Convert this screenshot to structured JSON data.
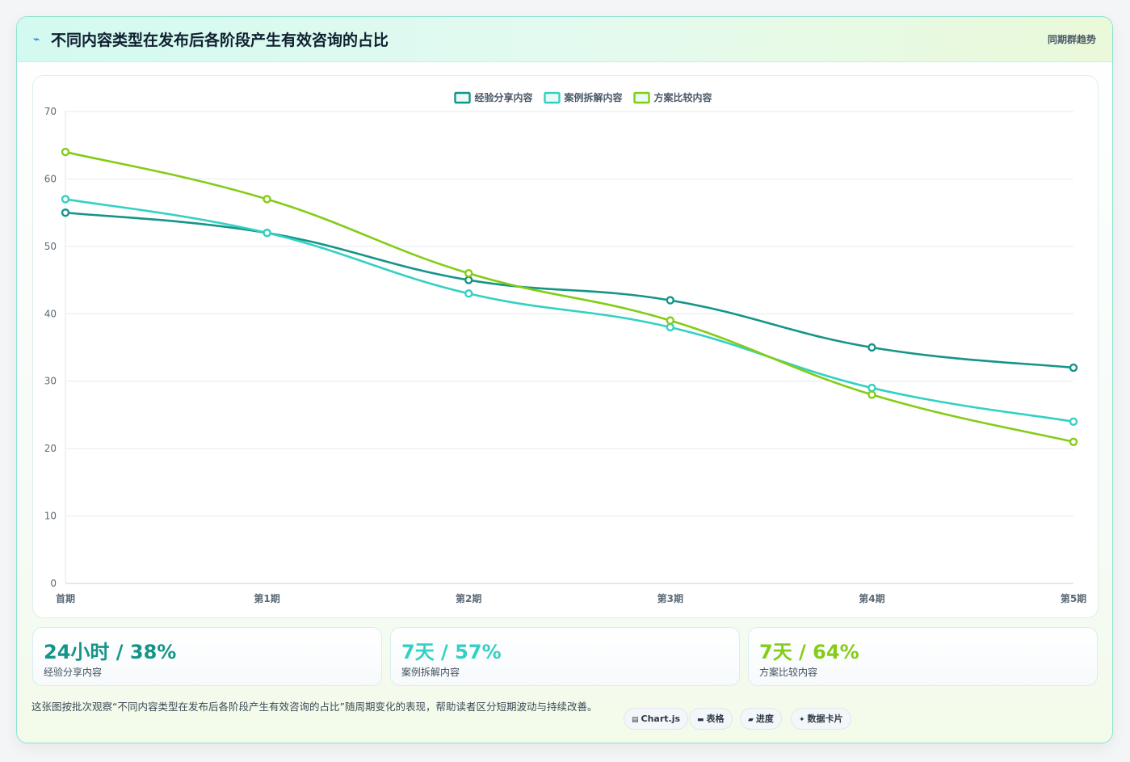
{
  "header": {
    "icon": "lightning-icon",
    "title": "不同内容类型在发布后各阶段产生有效咨询的占比",
    "subtitle": "同期群趋势"
  },
  "chart_data": {
    "type": "line",
    "categories": [
      "首期",
      "第1期",
      "第2期",
      "第3期",
      "第4期",
      "第5期"
    ],
    "series": [
      {
        "name": "经验分享内容",
        "color": "#159488",
        "values": [
          55,
          52,
          45,
          42,
          35,
          32
        ]
      },
      {
        "name": "案例拆解内容",
        "color": "#33d1c3",
        "values": [
          57,
          52,
          43,
          38,
          29,
          24
        ]
      },
      {
        "name": "方案比较内容",
        "color": "#84cc16",
        "values": [
          64,
          57,
          46,
          39,
          28,
          21
        ]
      }
    ],
    "ylim": [
      0,
      70
    ],
    "yticks": [
      0,
      10,
      20,
      30,
      40,
      50,
      60,
      70
    ],
    "grid": true,
    "legend": "top-center"
  },
  "kpis": [
    {
      "value": "24小时 / 38%",
      "label": "经验分享内容",
      "color": "#159488"
    },
    {
      "value": "7天 / 57%",
      "label": "案例拆解内容",
      "color": "#33d1c3"
    },
    {
      "value": "7天 / 64%",
      "label": "方案比较内容",
      "color": "#84cc16"
    }
  ],
  "footer": {
    "note": "这张图按批次观察“不同内容类型在发布后各阶段产生有效咨询的占比”随周期变化的表现，帮助读者区分短期波动与持续改善。",
    "chips": [
      {
        "icon": "chart-icon",
        "label": "Chart.js"
      },
      {
        "icon": "table-icon",
        "label": "表格"
      },
      {
        "icon": "progress-icon",
        "label": "进度"
      },
      {
        "icon": "sparkle-icon",
        "label": "数据卡片"
      }
    ]
  }
}
